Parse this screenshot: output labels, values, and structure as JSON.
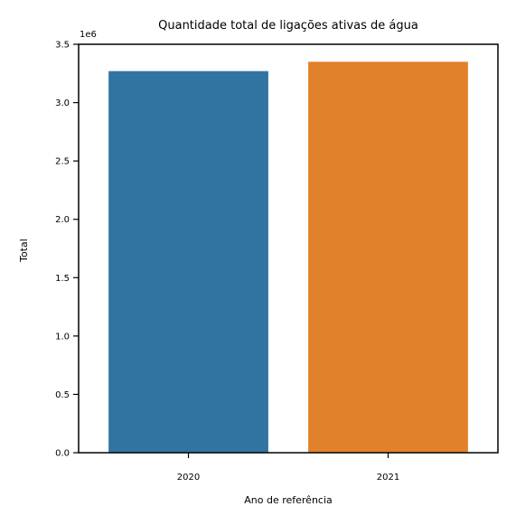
{
  "chart_data": {
    "type": "bar",
    "title": "Quantidade total de ligações ativas de água",
    "xlabel": "Ano de referência",
    "ylabel": "Total",
    "y_offset_label": "1e6",
    "categories": [
      "2020",
      "2021"
    ],
    "values": [
      3270000,
      3350000
    ],
    "colors": [
      "#3274a1",
      "#e1812c"
    ],
    "ylim": [
      0,
      3500000
    ],
    "yticks": [
      0,
      500000,
      1000000,
      1500000,
      2000000,
      2500000,
      3000000,
      3500000
    ],
    "ytick_labels": [
      "0.0",
      "0.5",
      "1.0",
      "1.5",
      "2.0",
      "2.5",
      "3.0",
      "3.5"
    ],
    "grid": false,
    "legend": "none"
  }
}
